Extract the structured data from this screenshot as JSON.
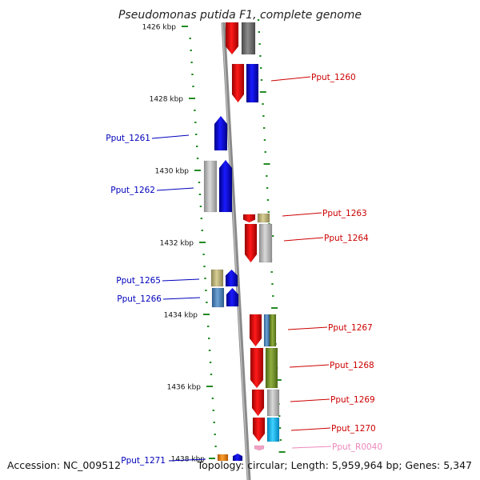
{
  "title": "Pseudomonas putida F1, complete genome",
  "footer": {
    "accession": "Accession: NC_009512",
    "topology": "Topology: circular; Length: 5,959,964 bp; Genes: 5,347"
  },
  "colors": {
    "backbone": "#8a8a8a",
    "tick": "#228b22",
    "label_plus": "#cc0000",
    "label_minus": "#0000bb",
    "label_rna": "#ee88bb"
  },
  "ticks": [
    "1426 kbp",
    "1428 kbp",
    "1430 kbp",
    "1432 kbp",
    "1434 kbp",
    "1436 kbp",
    "1438 kbp"
  ],
  "genes": [
    {
      "label": "Pput_1260",
      "strand": "plus"
    },
    {
      "label": "Pput_1261",
      "strand": "minus"
    },
    {
      "label": "Pput_1262",
      "strand": "minus"
    },
    {
      "label": "Pput_1263",
      "strand": "plus"
    },
    {
      "label": "Pput_1264",
      "strand": "plus"
    },
    {
      "label": "Pput_1265",
      "strand": "minus"
    },
    {
      "label": "Pput_1266",
      "strand": "minus"
    },
    {
      "label": "Pput_1267",
      "strand": "plus"
    },
    {
      "label": "Pput_1268",
      "strand": "plus"
    },
    {
      "label": "Pput_1269",
      "strand": "plus"
    },
    {
      "label": "Pput_1270",
      "strand": "plus"
    },
    {
      "label": "Pput_R0040",
      "strand": "rna"
    },
    {
      "label": "Pput_1271",
      "strand": "minus"
    }
  ]
}
